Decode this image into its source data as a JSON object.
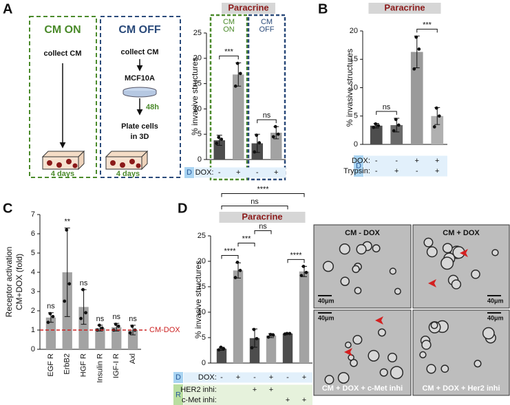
{
  "panels": [
    "A",
    "B",
    "C",
    "D"
  ],
  "schematic": {
    "on_title": "CM ON",
    "on_step": "collect CM",
    "on_time": "4 days",
    "off_title": "CM OFF",
    "off_step": "collect CM",
    "off_cells": "MCF10A",
    "off_wait": "48h",
    "off_plate": [
      "Plate cells",
      "in 3D"
    ],
    "off_time": "4 days"
  },
  "micrographs": [
    {
      "label": "CM - DOX",
      "scale": "40μm"
    },
    {
      "label": "CM + DOX",
      "scale": "40μm"
    },
    {
      "label": "CM + DOX + c-Met inhi",
      "scale": "40μm"
    },
    {
      "label": "CM + DOX + Her2 inhi",
      "scale": "40μm"
    }
  ],
  "chart_data": [
    {
      "type": "bar",
      "title": "Paracrine",
      "title_color": "#8b1a1a",
      "ylabel": [
        "% invasive structures"
      ],
      "values": [
        3.8,
        16.8,
        3.2,
        5.3
      ],
      "errors": [
        1.0,
        2.3,
        1.8,
        1.2
      ],
      "points": [
        [
          3.2,
          4.0,
          4.4
        ],
        [
          14.5,
          17.0,
          19.0
        ],
        [
          1.5,
          3.3,
          4.8
        ],
        [
          4.5,
          5.0,
          6.5
        ]
      ],
      "colors": [
        "#4d4d4d",
        "#a3a3a3",
        "#4d4d4d",
        "#a3a3a3"
      ],
      "ylim": [
        0,
        25
      ],
      "yticks": [
        0,
        5,
        10,
        15,
        20,
        25
      ],
      "groups": [
        {
          "label": [
            "CM",
            "ON"
          ],
          "span": [
            0,
            1
          ],
          "color": "#4a8a2a"
        },
        {
          "label": [
            "CM",
            "OFF"
          ],
          "span": [
            2,
            3
          ],
          "color": "#2a4a7a"
        }
      ],
      "annotations": [
        {
          "text": "***",
          "span": [
            0,
            1
          ]
        },
        {
          "text": "ns",
          "span": [
            2,
            3
          ]
        }
      ],
      "conditions": [
        {
          "tag": "D",
          "color": "#a9d4f2",
          "bg": "#e2f0fb",
          "rows": [
            {
              "name": "DOX:",
              "marks": [
                "-",
                "+",
                "-",
                "+"
              ]
            }
          ]
        }
      ]
    },
    {
      "type": "bar",
      "title": "Paracrine",
      "title_color": "#8b1a1a",
      "ylabel": [
        "% invasive structures"
      ],
      "values": [
        3.3,
        3.4,
        16.3,
        5.0
      ],
      "errors": [
        0.4,
        1.2,
        2.8,
        1.5
      ],
      "points": [
        [
          3.0,
          3.3,
          3.6
        ],
        [
          2.4,
          3.4,
          4.4
        ],
        [
          13.3,
          16.8,
          18.9
        ],
        [
          3.1,
          5.0,
          6.4
        ]
      ],
      "colors": [
        "#4d4d4d",
        "#6a6a6a",
        "#9a9a9a",
        "#b0b0b0"
      ],
      "ylim": [
        0,
        20
      ],
      "yticks": [
        0,
        5,
        10,
        15,
        20
      ],
      "annotations": [
        {
          "text": "ns",
          "span": [
            0,
            1
          ]
        },
        {
          "text": "***",
          "span": [
            2,
            3
          ]
        }
      ],
      "conditions": [
        {
          "tag": "D",
          "color": "#a9d4f2",
          "bg": "#e2f0fb",
          "rows": [
            {
              "name": "DOX:",
              "marks": [
                "-",
                "-",
                "+",
                "+"
              ]
            },
            {
              "name": "Trypsin:",
              "marks": [
                "-",
                "+",
                "-",
                "+"
              ]
            }
          ]
        }
      ]
    },
    {
      "type": "bar",
      "ylabel": [
        "Receptor activation",
        "CM+DOX (fold)"
      ],
      "categories": [
        "EGF R",
        "ErbB2",
        "HGF R",
        "Insulin R",
        "IGF-I R",
        "Axl"
      ],
      "values": [
        1.65,
        4.0,
        2.2,
        1.1,
        1.15,
        1.0
      ],
      "errors": [
        0.25,
        2.3,
        0.9,
        0.15,
        0.2,
        0.25
      ],
      "points": [
        [
          1.4,
          1.7,
          1.85
        ],
        [
          2.5,
          3.4,
          6.2
        ],
        [
          1.6,
          1.9,
          3.1
        ],
        [
          1.0,
          1.1,
          1.25
        ],
        [
          1.0,
          1.2,
          1.3
        ],
        [
          0.85,
          1.0,
          1.2
        ]
      ],
      "colors": [
        "#a3a3a3",
        "#a3a3a3",
        "#a3a3a3",
        "#a3a3a3",
        "#a3a3a3",
        "#a3a3a3"
      ],
      "significance": [
        "ns",
        "**",
        "ns",
        "ns",
        "ns",
        "ns"
      ],
      "reference": {
        "value": 1,
        "label": "CM-DOX",
        "color": "#cc2222"
      },
      "ylim": [
        0,
        7
      ],
      "yticks": [
        0,
        1,
        2,
        3,
        4,
        5,
        6,
        7
      ]
    },
    {
      "type": "bar",
      "title": "Paracrine",
      "title_color": "#8b1a1a",
      "ylabel": [
        "% invasive structures"
      ],
      "values": [
        2.8,
        18.2,
        4.9,
        5.4,
        5.8,
        18.0
      ],
      "errors": [
        0.3,
        1.5,
        1.8,
        0.4,
        0.1,
        1.0
      ],
      "points": [
        [
          2.6,
          2.8,
          3.1
        ],
        [
          16.8,
          18.2,
          19.8
        ],
        [
          3.0,
          4.8,
          6.6
        ],
        [
          5.1,
          5.5,
          5.6
        ],
        [
          5.7,
          5.8,
          5.8
        ],
        [
          17.2,
          17.8,
          19.0
        ]
      ],
      "colors": [
        "#4d4d4d",
        "#a3a3a3",
        "#4d4d4d",
        "#a3a3a3",
        "#4d4d4d",
        "#a3a3a3"
      ],
      "ylim": [
        0,
        25
      ],
      "yticks": [
        0,
        5,
        10,
        15,
        20,
        25
      ],
      "annotations": [
        {
          "text": "****",
          "span": [
            0,
            1
          ]
        },
        {
          "text": "***",
          "span": [
            1,
            2
          ]
        },
        {
          "text": "****",
          "span": [
            4,
            5
          ]
        },
        {
          "text": "ns",
          "span": [
            2,
            3
          ]
        },
        {
          "text": "ns",
          "span": [
            0,
            2
          ]
        },
        {
          "text": "ns",
          "span": [
            0,
            4
          ]
        },
        {
          "text": "****",
          "span": [
            0,
            5
          ]
        }
      ],
      "conditions": [
        {
          "tag": "D",
          "color": "#a9d4f2",
          "bg": "#e2f0fb",
          "rows": [
            {
              "name": "DOX:",
              "marks": [
                "-",
                "+",
                "-",
                "+",
                "-",
                "+"
              ]
            }
          ]
        },
        {
          "tag": "R",
          "color": "#b9dea0",
          "bg": "#e6f2dc",
          "rows": [
            {
              "name": "HER2 inhi:",
              "marks": [
                null,
                null,
                "+",
                "+",
                null,
                null
              ]
            },
            {
              "name": "c-Met inhi:",
              "marks": [
                null,
                null,
                null,
                null,
                "+",
                "+"
              ]
            }
          ]
        }
      ]
    }
  ]
}
